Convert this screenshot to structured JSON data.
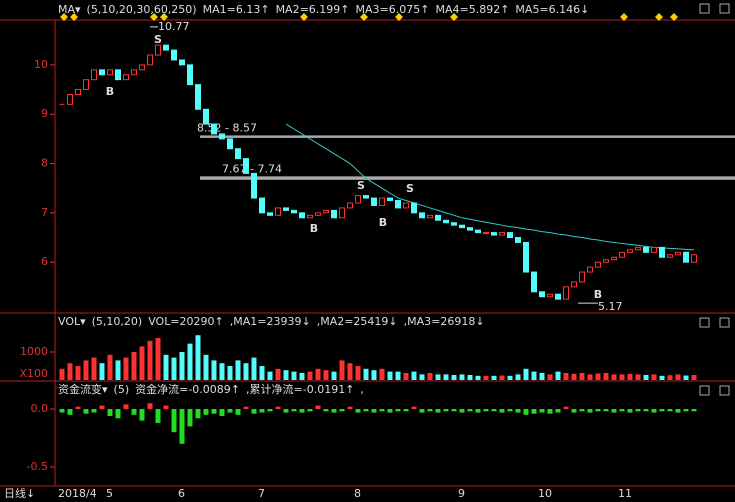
{
  "chart_data": [
    {
      "type": "candlestick",
      "legend": [
        {
          "text": "MA▾",
          "color": "#ffffff"
        },
        {
          "text": "(5,10,20,30,60,250)",
          "color": "#e0e0e0"
        },
        {
          "text": "MA1=6.13↑",
          "color": "#ffffff"
        },
        {
          "text": "MA2=6.199↑",
          "color": "#ffff00"
        },
        {
          "text": "MA3=6.075↑",
          "color": "#ff66ff"
        },
        {
          "text": "MA4=5.892↑",
          "color": "#ff8080"
        },
        {
          "text": "MA5=6.146↓",
          "color": "#66ffff"
        }
      ],
      "categories": [
        "2018/4",
        null,
        null,
        null,
        null,
        null,
        "5",
        null,
        null,
        null,
        null,
        null,
        null,
        null,
        null,
        "6",
        null,
        null,
        null,
        null,
        null,
        null,
        null,
        null,
        null,
        "7",
        null,
        null,
        null,
        null,
        null,
        null,
        null,
        null,
        null,
        null,
        null,
        "8",
        null,
        null,
        null,
        null,
        null,
        null,
        null,
        null,
        null,
        null,
        null,
        null,
        "9",
        null,
        null,
        null,
        null,
        null,
        null,
        null,
        null,
        null,
        "10",
        null,
        null,
        null,
        null,
        null,
        null,
        null,
        null,
        null,
        "11",
        null,
        null,
        null,
        null,
        null,
        null,
        null,
        null,
        null
      ],
      "closes": [
        9.2,
        9.4,
        9.5,
        9.7,
        9.9,
        9.8,
        9.9,
        9.7,
        9.8,
        9.9,
        10.0,
        10.2,
        10.4,
        10.3,
        10.1,
        10.0,
        9.6,
        9.1,
        8.8,
        8.6,
        8.5,
        8.3,
        8.1,
        7.8,
        7.3,
        7.0,
        6.95,
        7.1,
        7.05,
        7.0,
        6.9,
        6.95,
        7.0,
        7.05,
        6.9,
        7.1,
        7.2,
        7.35,
        7.3,
        7.15,
        7.3,
        7.25,
        7.1,
        7.2,
        7.0,
        6.9,
        6.95,
        6.85,
        6.8,
        6.75,
        6.7,
        6.65,
        6.6,
        6.6,
        6.55,
        6.6,
        6.5,
        6.4,
        5.8,
        5.4,
        5.3,
        5.35,
        5.25,
        5.5,
        5.6,
        5.8,
        5.9,
        6.0,
        6.05,
        6.1,
        6.2,
        6.25,
        6.3,
        6.2,
        6.3,
        6.1,
        6.15,
        6.2,
        6.0,
        6.15
      ],
      "ma_line": {
        "color": "#33cccc",
        "values": [
          null,
          null,
          null,
          null,
          null,
          null,
          null,
          null,
          null,
          null,
          null,
          null,
          null,
          null,
          null,
          null,
          null,
          null,
          null,
          null,
          null,
          null,
          null,
          null,
          null,
          null,
          null,
          null,
          8.8,
          8.7,
          8.6,
          8.5,
          8.4,
          8.3,
          8.2,
          8.1,
          8.0,
          7.85,
          7.7,
          7.6,
          7.5,
          7.4,
          7.3,
          7.25,
          7.2,
          7.15,
          7.1,
          7.05,
          7.0,
          6.95,
          6.9,
          6.87,
          6.84,
          6.81,
          6.78,
          6.75,
          6.72,
          6.7,
          6.67,
          6.65,
          6.62,
          6.6,
          6.57,
          6.55,
          6.52,
          6.5,
          6.47,
          6.45,
          6.42,
          6.4,
          6.38,
          6.36,
          6.34,
          6.32,
          6.3,
          6.29,
          6.28,
          6.27,
          6.26,
          6.25
        ]
      },
      "high_label": 10.77,
      "low_label": 5.17,
      "zones": [
        {
          "label": "8.52 - 8.57",
          "low": 8.52,
          "high": 8.57
        },
        {
          "label": "7.67 - 7.74",
          "low": 7.67,
          "high": 7.74
        }
      ],
      "signals": [
        "B",
        "S",
        "B",
        "S",
        "B",
        "S",
        "B"
      ],
      "ylim": [
        4.99,
        10.91
      ],
      "yticks": [
        6,
        7,
        8,
        9,
        10
      ]
    },
    {
      "type": "bar",
      "legend": [
        {
          "text": "VOL▾",
          "color": "#ffffff"
        },
        {
          "text": "(5,10,20)",
          "color": "#e0e0e0"
        },
        {
          "text": "VOL=20290↑",
          "color": "#ffffff"
        },
        {
          "text": ",MA1=23939↓",
          "color": "#ffff00"
        },
        {
          "text": ",MA2=25419↓",
          "color": "#ff66ff"
        },
        {
          "text": ",MA3=26918↓",
          "color": "#66ff66"
        }
      ],
      "unit_label": "X100",
      "values": [
        400,
        600,
        500,
        700,
        800,
        600,
        900,
        700,
        800,
        1000,
        1200,
        1400,
        1500,
        900,
        800,
        1000,
        1300,
        1600,
        900,
        700,
        600,
        500,
        700,
        600,
        800,
        500,
        300,
        400,
        350,
        300,
        250,
        300,
        400,
        350,
        300,
        700,
        600,
        500,
        400,
        350,
        400,
        300,
        300,
        250,
        300,
        200,
        250,
        200,
        200,
        180,
        200,
        180,
        150,
        150,
        150,
        160,
        150,
        200,
        400,
        300,
        250,
        200,
        300,
        250,
        220,
        250,
        200,
        230,
        250,
        200,
        200,
        220,
        200,
        180,
        200,
        150,
        170,
        200,
        160,
        180
      ],
      "ylim": [
        0,
        1786
      ],
      "yticks": [
        1000
      ]
    },
    {
      "type": "bar",
      "legend": [
        {
          "text": "资金流变▾",
          "color": "#ffff00"
        },
        {
          "text": "(5)",
          "color": "#e0e0e0"
        },
        {
          "text": "资金净流=-0.0089↑",
          "color": "#ffffff"
        },
        {
          "text": ",累计净流=-0.0191↑",
          "color": "#ffff00"
        },
        {
          "text": ",",
          "color": "#ffffff"
        }
      ],
      "values": [
        -0.03,
        -0.05,
        0.02,
        -0.04,
        -0.03,
        0.03,
        -0.06,
        -0.08,
        0.04,
        -0.05,
        -0.1,
        0.05,
        -0.12,
        0.03,
        -0.2,
        -0.3,
        -0.15,
        -0.08,
        -0.05,
        -0.04,
        -0.06,
        -0.03,
        -0.05,
        0.02,
        -0.04,
        -0.03,
        -0.02,
        0.02,
        -0.03,
        -0.02,
        -0.03,
        -0.02,
        0.03,
        -0.02,
        -0.03,
        -0.02,
        0.02,
        -0.03,
        -0.02,
        -0.03,
        -0.02,
        -0.03,
        -0.02,
        -0.02,
        0.02,
        -0.03,
        -0.02,
        -0.03,
        -0.02,
        -0.02,
        -0.03,
        -0.02,
        -0.03,
        -0.02,
        -0.02,
        -0.03,
        -0.02,
        -0.03,
        -0.05,
        -0.04,
        -0.03,
        -0.04,
        -0.03,
        0.02,
        -0.03,
        -0.02,
        -0.03,
        -0.02,
        -0.02,
        -0.03,
        -0.02,
        -0.03,
        -0.02,
        -0.02,
        -0.03,
        -0.02,
        -0.02,
        -0.03,
        -0.02,
        -0.02
      ],
      "ylim": [
        -0.655,
        0.095
      ],
      "yticks": [
        {
          "value": 0,
          "label": "0.0"
        },
        {
          "value": -0.5,
          "label": "-0.5"
        }
      ]
    }
  ],
  "footer": {
    "period": "日线↓"
  }
}
